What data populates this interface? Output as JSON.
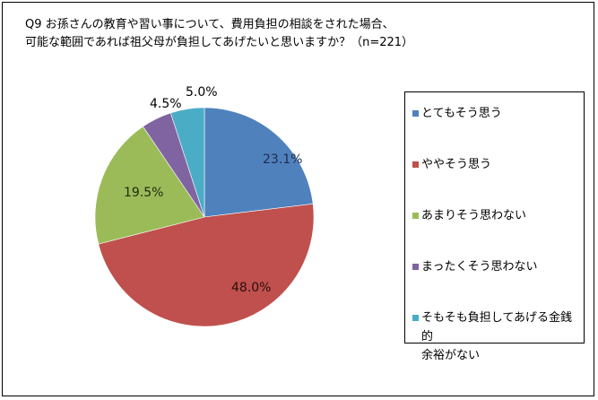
{
  "chart_data": {
    "type": "pie",
    "title": "Q9 お孫さんの教育や習い事について、費用負担の相談をされた場合、可能な範囲であれば祖父母が負担してあげたいと思いますか？（n=221）",
    "title_lines": [
      "Q9 お孫さんの教育や習い事について、費用負担の相談をされた場合、",
      "可能な範囲であれば祖父母が負担してあげたいと思いますか？（n=221）"
    ],
    "categories": [
      "とてもそう思う",
      "ややそう思う",
      "あまりそう思わない",
      "まったくそう思わない",
      "そもそも負担してあげる金銭的余裕がない"
    ],
    "values": [
      23.1,
      48.0,
      19.5,
      4.5,
      5.0
    ],
    "value_labels": [
      "23.1%",
      "48.0%",
      "19.5%",
      "4.5%",
      "5.0%"
    ],
    "colors": [
      "#4F81BD",
      "#C0504D",
      "#9BBB59",
      "#8064A2",
      "#4BACC6"
    ],
    "legend_position": "right",
    "start_angle": "12 o'clock, clockwise"
  },
  "legend": {
    "items": [
      {
        "lines": [
          "とてもそう思う"
        ]
      },
      {
        "lines": [
          "ややそう思う"
        ]
      },
      {
        "lines": [
          "あまりそう思わない"
        ]
      },
      {
        "lines": [
          "まったくそう思わない"
        ]
      },
      {
        "lines": [
          "そもそも負担してあげる金銭的",
          "余裕がない"
        ]
      }
    ]
  }
}
